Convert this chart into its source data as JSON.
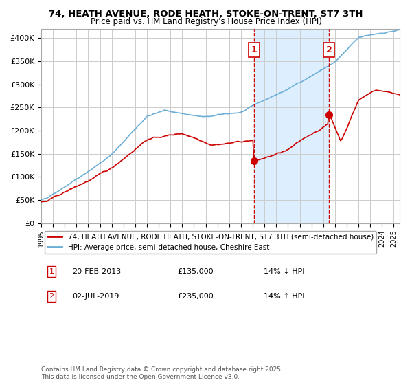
{
  "title1": "74, HEATH AVENUE, RODE HEATH, STOKE-ON-TRENT, ST7 3TH",
  "title2": "Price paid vs. HM Land Registry's House Price Index (HPI)",
  "red_label": "74, HEATH AVENUE, RODE HEATH, STOKE-ON-TRENT, ST7 3TH (semi-detached house)",
  "blue_label": "HPI: Average price, semi-detached house, Cheshire East",
  "annotation1_date": "20-FEB-2013",
  "annotation1_price": "£135,000",
  "annotation1_hpi": "14% ↓ HPI",
  "annotation2_date": "02-JUL-2019",
  "annotation2_price": "£235,000",
  "annotation2_hpi": "14% ↑ HPI",
  "copyright_text": "Contains HM Land Registry data © Crown copyright and database right 2025.\nThis data is licensed under the Open Government Licence v3.0.",
  "red_color": "#cc0000",
  "blue_color": "#6baed6",
  "shading_color": "#ddeeff",
  "grid_color": "#cccccc",
  "background_color": "#ffffff",
  "point1_year": 2013.13,
  "point1_value_red": 135000,
  "point2_year": 2019.5,
  "point2_value_red": 235000,
  "ylim": [
    0,
    420000
  ],
  "xlim_start": 1995,
  "xlim_end": 2025.5
}
